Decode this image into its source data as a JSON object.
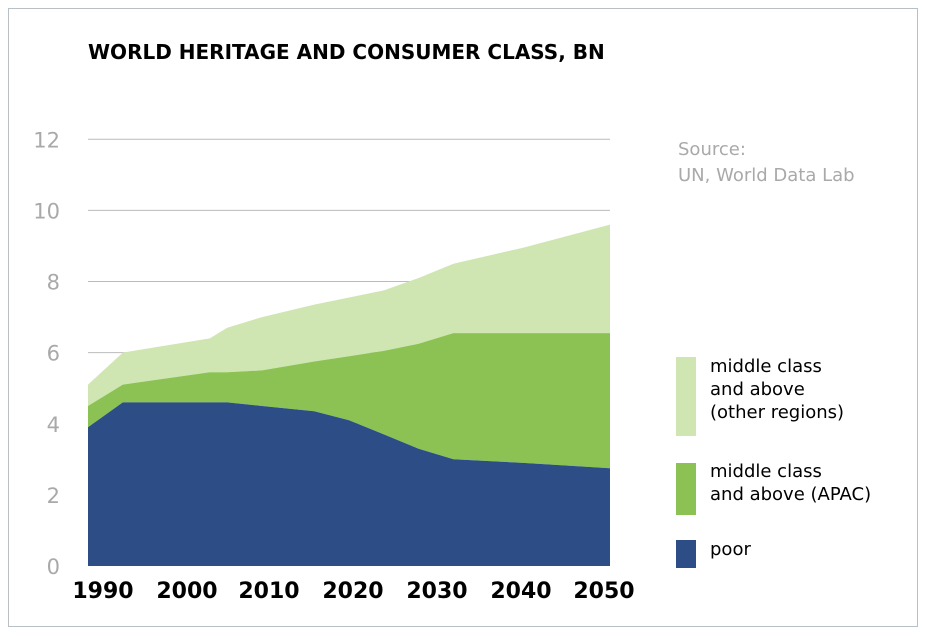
{
  "colors": {
    "poor": "#2c4d85",
    "apac": "#8bc253",
    "other": "#cfe6b3",
    "gridline": "#bbbbbb",
    "ytick": "#a9a9a9",
    "xtick": "#000000"
  },
  "source_text": "Source:\nUN, World Data Lab",
  "chart_data": {
    "type": "area",
    "stacked": true,
    "title": "WORLD HERITAGE AND CONSUMER CLASS, BN",
    "xlabel": "",
    "ylabel": "",
    "x": [
      1990,
      1994,
      2004,
      2006,
      2010,
      2016,
      2020,
      2024,
      2028,
      2032,
      2040,
      2050
    ],
    "xlim": [
      1990,
      2050
    ],
    "ylim": [
      0,
      12.5
    ],
    "x_ticks": [
      "1990",
      "2000",
      "2010",
      "2020",
      "2030",
      "2040",
      "2050"
    ],
    "y_ticks": [
      {
        "label": "12",
        "value": 12
      },
      {
        "label": "10",
        "value": 10
      },
      {
        "label": "8",
        "value": 8
      },
      {
        "label": "6",
        "value": 6
      },
      {
        "label": "4",
        "value": 4
      },
      {
        "label": "2",
        "value": 2
      },
      {
        "label": "0",
        "value": 0
      }
    ],
    "series": [
      {
        "name": "poor",
        "values": [
          3.9,
          4.6,
          4.6,
          4.6,
          4.5,
          4.35,
          4.1,
          3.7,
          3.3,
          3.0,
          2.9,
          2.75
        ]
      },
      {
        "name": "middle class\nand above (APAC)",
        "values": [
          0.6,
          0.5,
          0.85,
          0.85,
          1.0,
          1.4,
          1.8,
          2.35,
          2.95,
          3.55,
          3.65,
          3.8
        ]
      },
      {
        "name": "middle class\nand above\n(other regions)",
        "values": [
          0.6,
          0.9,
          0.95,
          1.25,
          1.5,
          1.6,
          1.65,
          1.7,
          1.85,
          1.95,
          2.4,
          3.05
        ]
      }
    ],
    "grid": true,
    "legend_position": "right"
  }
}
